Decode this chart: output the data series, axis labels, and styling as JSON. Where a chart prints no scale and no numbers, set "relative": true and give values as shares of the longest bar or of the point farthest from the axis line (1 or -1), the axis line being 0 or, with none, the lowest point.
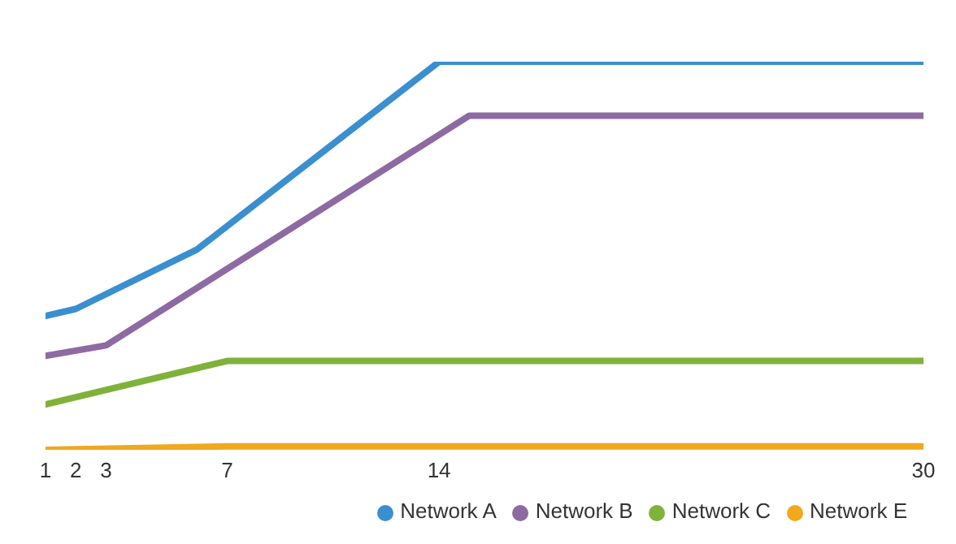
{
  "chart_data": {
    "type": "line",
    "relative": true,
    "xlim": [
      1,
      30
    ],
    "xticks": [
      1,
      2,
      3,
      7,
      14,
      30
    ],
    "grid": false,
    "legend": "bottom right",
    "marker": "none",
    "line_style": "solid",
    "series": [
      {
        "name": "Network A",
        "color": "#3a8fd0",
        "x": [
          1,
          2,
          6,
          14,
          30
        ],
        "values": [
          0.345,
          0.363,
          0.516,
          1,
          1
        ]
      },
      {
        "name": "Network B",
        "color": "#8e6aa3",
        "x": [
          1,
          3,
          15,
          30
        ],
        "values": [
          0.242,
          0.269,
          0.861,
          0.861
        ]
      },
      {
        "name": "Network C",
        "color": "#7fb23a",
        "x": [
          1,
          7,
          30
        ],
        "values": [
          0.117,
          0.229,
          0.229
        ]
      },
      {
        "name": "Network E",
        "color": "#f0a81c",
        "x": [
          1,
          7,
          30
        ],
        "values": [
          0,
          0.009,
          0.009
        ]
      }
    ]
  }
}
